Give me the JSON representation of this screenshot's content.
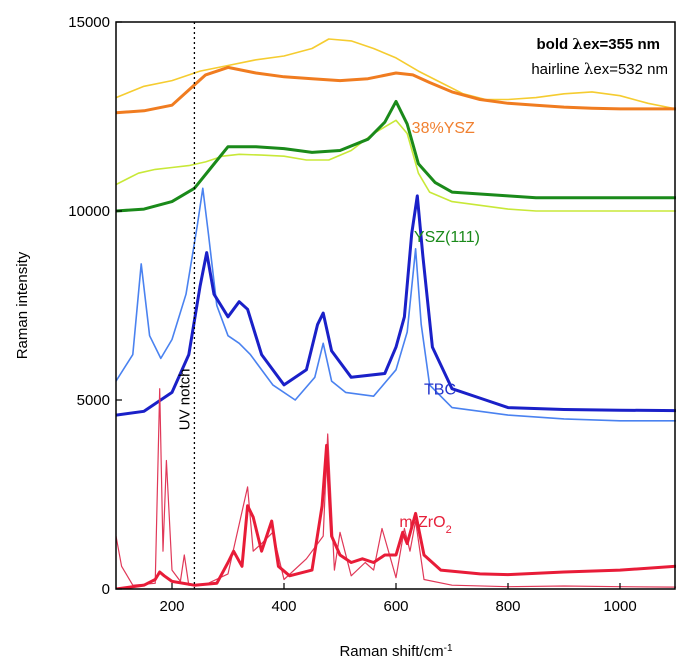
{
  "chart_data": {
    "type": "line",
    "xlabel": "Raman shift/cm",
    "xlabel_sup": "-1",
    "ylabel": "Raman intensity",
    "xlim": [
      100,
      1100
    ],
    "ylim": [
      0,
      15000
    ],
    "x_ticks": [
      200,
      400,
      600,
      800,
      1000
    ],
    "y_ticks": [
      0,
      5000,
      10000,
      15000
    ],
    "x_tick_labels": [
      "200",
      "400",
      "600",
      "800",
      "1000"
    ],
    "y_tick_labels": [
      "0",
      "5000",
      "10000",
      "15000"
    ],
    "grid": false,
    "legend": {
      "placement": "top-right",
      "line1_prefix": "bold ",
      "line1_lambda": "λ",
      "line1_suffix": "ex=355 nm",
      "line2_prefix": "hairline ",
      "line2_lambda": "λ",
      "line2_suffix": "ex=532 nm"
    },
    "annotations": [
      {
        "text": "UV notch",
        "x": 240,
        "type": "vertical-dotted-line"
      }
    ],
    "labels": [
      {
        "text": "38%YSZ",
        "color": "#f08030",
        "x": 628,
        "y": 12060
      },
      {
        "text": "YSZ(111)",
        "color": "#1a8a1a",
        "x": 632,
        "y": 9180
      },
      {
        "text": "TBC",
        "color": "#2233cc",
        "x": 650,
        "y": 5150
      },
      {
        "text": "m-ZrO",
        "sub": "2",
        "color": "#e6203a",
        "x": 606,
        "y": 1640
      }
    ],
    "series": [
      {
        "color": "#f5cc30",
        "width": 1.6,
        "x": [
          100,
          150,
          200,
          250,
          300,
          350,
          400,
          450,
          480,
          520,
          560,
          600,
          640,
          680,
          720,
          760,
          800,
          850,
          900,
          950,
          1000,
          1050,
          1100
        ],
        "y": [
          13000,
          13300,
          13450,
          13700,
          13850,
          14000,
          14100,
          14300,
          14550,
          14500,
          14300,
          14050,
          13700,
          13400,
          13100,
          12950,
          12950,
          13000,
          13100,
          13150,
          13050,
          12850,
          12700
        ]
      },
      {
        "color": "#f07c20",
        "width": 3,
        "x": [
          100,
          150,
          200,
          230,
          260,
          300,
          350,
          400,
          450,
          500,
          550,
          600,
          630,
          660,
          700,
          750,
          800,
          850,
          900,
          950,
          1000,
          1050,
          1100
        ],
        "y": [
          12600,
          12650,
          12800,
          13200,
          13600,
          13800,
          13650,
          13550,
          13500,
          13450,
          13500,
          13650,
          13600,
          13400,
          13150,
          12950,
          12850,
          12800,
          12750,
          12720,
          12700,
          12700,
          12700
        ]
      },
      {
        "color": "#c8e838",
        "width": 1.6,
        "x": [
          100,
          140,
          170,
          200,
          230,
          260,
          290,
          320,
          360,
          400,
          440,
          480,
          520,
          560,
          600,
          620,
          640,
          660,
          700,
          750,
          800,
          850,
          900,
          950,
          1000,
          1050,
          1100
        ],
        "y": [
          10700,
          11000,
          11100,
          11150,
          11200,
          11300,
          11450,
          11500,
          11480,
          11450,
          11350,
          11350,
          11600,
          12050,
          12400,
          12050,
          11000,
          10500,
          10250,
          10150,
          10050,
          10000,
          10000,
          10000,
          10000,
          10000,
          10000
        ]
      },
      {
        "color": "#1a8a1a",
        "width": 3,
        "x": [
          100,
          150,
          200,
          240,
          270,
          300,
          350,
          400,
          450,
          500,
          550,
          580,
          600,
          620,
          640,
          670,
          700,
          750,
          800,
          850,
          900,
          950,
          1000,
          1050,
          1100
        ],
        "y": [
          10000,
          10050,
          10250,
          10600,
          11150,
          11700,
          11700,
          11650,
          11550,
          11600,
          11900,
          12350,
          12900,
          12300,
          11250,
          10750,
          10500,
          10450,
          10400,
          10350,
          10350,
          10350,
          10350,
          10350,
          10350
        ]
      },
      {
        "color": "#4a82f0",
        "width": 1.6,
        "x": [
          100,
          130,
          145,
          160,
          180,
          200,
          225,
          245,
          255,
          265,
          280,
          300,
          320,
          340,
          380,
          420,
          455,
          470,
          485,
          510,
          560,
          600,
          620,
          635,
          645,
          660,
          700,
          800,
          900,
          1000,
          1100
        ],
        "y": [
          5500,
          6200,
          8600,
          6700,
          6100,
          6600,
          7800,
          9600,
          10600,
          9400,
          7500,
          6700,
          6500,
          6200,
          5400,
          5000,
          5600,
          6500,
          5500,
          5200,
          5100,
          5800,
          6800,
          9000,
          7000,
          5400,
          4800,
          4600,
          4500,
          4450,
          4450
        ]
      },
      {
        "color": "#1a20c8",
        "width": 3,
        "x": [
          100,
          150,
          200,
          230,
          250,
          262,
          275,
          300,
          320,
          335,
          360,
          400,
          440,
          460,
          470,
          485,
          520,
          580,
          600,
          615,
          628,
          638,
          648,
          665,
          700,
          760,
          800,
          900,
          1000,
          1100
        ],
        "y": [
          4600,
          4700,
          5200,
          6200,
          8000,
          8900,
          7800,
          7200,
          7600,
          7400,
          6200,
          5400,
          5800,
          7000,
          7300,
          6300,
          5600,
          5700,
          6400,
          7200,
          9400,
          10400,
          8800,
          6400,
          5300,
          5000,
          4800,
          4750,
          4730,
          4720
        ]
      },
      {
        "color": "#e03858",
        "width": 1.2,
        "x": [
          100,
          110,
          130,
          170,
          178,
          184,
          190,
          200,
          215,
          222,
          230,
          260,
          300,
          335,
          345,
          360,
          380,
          400,
          440,
          470,
          478,
          490,
          500,
          520,
          545,
          560,
          575,
          600,
          615,
          625,
          635,
          650,
          700,
          800,
          900,
          1000,
          1100
        ],
        "y": [
          1400,
          600,
          100,
          150,
          5300,
          1000,
          3400,
          500,
          200,
          900,
          100,
          120,
          400,
          2700,
          1000,
          1200,
          1500,
          250,
          800,
          1400,
          4100,
          500,
          1500,
          350,
          700,
          500,
          1600,
          300,
          1600,
          1000,
          1800,
          250,
          100,
          60,
          80,
          60,
          50
        ]
      },
      {
        "color": "#e81c38",
        "width": 3,
        "x": [
          100,
          150,
          170,
          178,
          186,
          200,
          240,
          280,
          300,
          310,
          325,
          335,
          345,
          360,
          378,
          390,
          410,
          450,
          468,
          476,
          485,
          500,
          520,
          540,
          560,
          580,
          600,
          612,
          620,
          635,
          650,
          680,
          750,
          800,
          900,
          1000,
          1100
        ],
        "y": [
          0,
          100,
          250,
          450,
          350,
          200,
          100,
          150,
          700,
          1000,
          600,
          2200,
          1900,
          1000,
          1800,
          600,
          350,
          500,
          2200,
          3800,
          1400,
          900,
          700,
          800,
          700,
          900,
          900,
          1500,
          1200,
          2000,
          900,
          500,
          400,
          380,
          450,
          500,
          600
        ]
      }
    ]
  }
}
